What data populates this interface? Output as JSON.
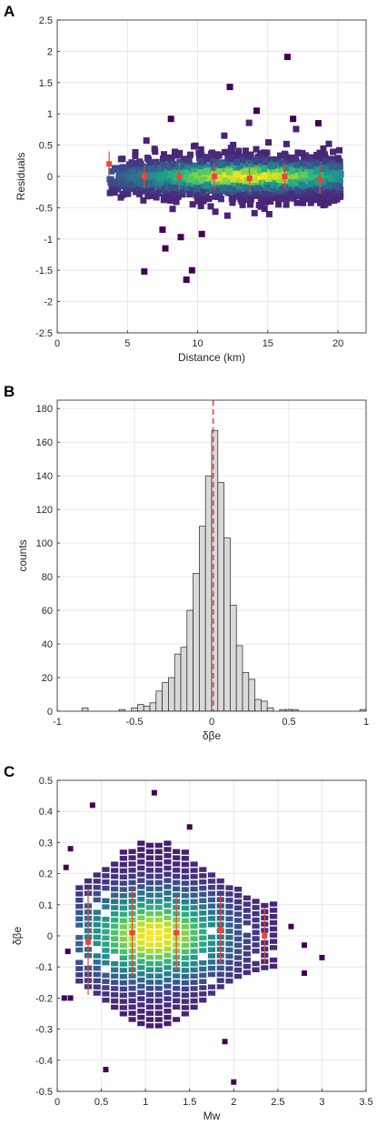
{
  "chart_data": [
    {
      "panel_label": "A",
      "type": "scatter",
      "subtype": "density-heatmap-with-binned-means",
      "xlabel": "Distance (km)",
      "ylabel": "Residuals",
      "xlim": [
        0,
        22
      ],
      "ylim": [
        -2.5,
        2.5
      ],
      "xticks": [
        "0",
        "5",
        "10",
        "15",
        "20"
      ],
      "yticks": [
        "-2.5",
        "-2",
        "-1.5",
        "-1",
        "-0.5",
        "0",
        "0.5",
        "1",
        "1.5",
        "2",
        "2.5"
      ],
      "grid": true,
      "density_cloud": {
        "x_range": [
          3.5,
          20.2
        ],
        "y_center": -0.02,
        "core_x": 13.5
      },
      "outliers": [
        {
          "x": 6.2,
          "y": -1.52
        },
        {
          "x": 7.5,
          "y": -0.85
        },
        {
          "x": 7.7,
          "y": -1.15
        },
        {
          "x": 8.8,
          "y": -0.97
        },
        {
          "x": 9.6,
          "y": -1.5
        },
        {
          "x": 9.2,
          "y": -1.65
        },
        {
          "x": 10.3,
          "y": -0.92
        },
        {
          "x": 8.1,
          "y": 0.92
        },
        {
          "x": 12.3,
          "y": 1.43
        },
        {
          "x": 16.4,
          "y": 1.91
        },
        {
          "x": 14.2,
          "y": 1.05
        },
        {
          "x": 18.6,
          "y": 0.85
        },
        {
          "x": 16.8,
          "y": 0.92
        }
      ],
      "binned_means": [
        {
          "x": 3.7,
          "y": 0.2,
          "err": 0.2
        },
        {
          "x": 6.2,
          "y": 0.0,
          "err": 0.18
        },
        {
          "x": 8.7,
          "y": 0.0,
          "err": 0.22
        },
        {
          "x": 11.2,
          "y": 0.0,
          "err": 0.22
        },
        {
          "x": 13.7,
          "y": -0.03,
          "err": 0.22
        },
        {
          "x": 16.2,
          "y": 0.0,
          "err": 0.2
        },
        {
          "x": 18.7,
          "y": -0.05,
          "err": 0.23
        }
      ],
      "colors": {
        "mean_marker": "#e8473f",
        "outlier": "#440154"
      }
    },
    {
      "panel_label": "B",
      "type": "bar",
      "subtype": "histogram",
      "xlabel": "δβe",
      "ylabel": "counts",
      "xlim": [
        -1,
        1
      ],
      "ylim": [
        0,
        185
      ],
      "xticks": [
        "-1",
        "-0.5",
        "0",
        "0.5",
        "1"
      ],
      "yticks": [
        "0",
        "20",
        "40",
        "60",
        "80",
        "100",
        "120",
        "140",
        "160",
        "180"
      ],
      "grid": true,
      "bin_width": 0.04,
      "bins": [
        {
          "x": -0.82,
          "count": 2
        },
        {
          "x": -0.58,
          "count": 1
        },
        {
          "x": -0.5,
          "count": 2
        },
        {
          "x": -0.46,
          "count": 4
        },
        {
          "x": -0.42,
          "count": 3
        },
        {
          "x": -0.38,
          "count": 5
        },
        {
          "x": -0.34,
          "count": 12
        },
        {
          "x": -0.3,
          "count": 17
        },
        {
          "x": -0.26,
          "count": 20
        },
        {
          "x": -0.22,
          "count": 34
        },
        {
          "x": -0.18,
          "count": 38
        },
        {
          "x": -0.14,
          "count": 60
        },
        {
          "x": -0.1,
          "count": 82
        },
        {
          "x": -0.06,
          "count": 110
        },
        {
          "x": -0.02,
          "count": 140
        },
        {
          "x": 0.02,
          "count": 167
        },
        {
          "x": 0.06,
          "count": 136
        },
        {
          "x": 0.1,
          "count": 103
        },
        {
          "x": 0.14,
          "count": 63
        },
        {
          "x": 0.18,
          "count": 39
        },
        {
          "x": 0.22,
          "count": 23
        },
        {
          "x": 0.26,
          "count": 19
        },
        {
          "x": 0.3,
          "count": 7
        },
        {
          "x": 0.34,
          "count": 6
        },
        {
          "x": 0.38,
          "count": 2
        },
        {
          "x": 0.46,
          "count": 1
        },
        {
          "x": 0.5,
          "count": 1
        },
        {
          "x": 0.54,
          "count": 1
        },
        {
          "x": 0.98,
          "count": 1
        }
      ],
      "mean_line_x": 0.01,
      "colors": {
        "bar_fill": "#d9d9d9",
        "bar_edge": "#222222",
        "mean_line": "#e8473f"
      }
    },
    {
      "panel_label": "C",
      "type": "scatter",
      "subtype": "density-heatmap-with-binned-means",
      "xlabel": "Mw",
      "ylabel": "δβe",
      "xlim": [
        0,
        3.5
      ],
      "ylim": [
        -0.5,
        0.5
      ],
      "xticks": [
        "0",
        "0.5",
        "1",
        "1.5",
        "2",
        "2.5",
        "3",
        "3.5"
      ],
      "yticks": [
        "-0.5",
        "-0.4",
        "-0.3",
        "-0.2",
        "-0.1",
        "0",
        "0.1",
        "0.2",
        "0.3",
        "0.4",
        "0.5"
      ],
      "grid": true,
      "density_cloud": {
        "x_range": [
          0.2,
          2.6
        ],
        "core_x": 1.1,
        "y_center": 0.01
      },
      "outliers": [
        {
          "x": 0.4,
          "y": 0.42
        },
        {
          "x": 1.1,
          "y": 0.46
        },
        {
          "x": 0.15,
          "y": 0.28
        },
        {
          "x": 0.1,
          "y": 0.22
        },
        {
          "x": 0.55,
          "y": -0.43
        },
        {
          "x": 2.0,
          "y": -0.47
        },
        {
          "x": 2.8,
          "y": -0.03
        },
        {
          "x": 3.0,
          "y": -0.07
        },
        {
          "x": 2.8,
          "y": -0.12
        },
        {
          "x": 2.65,
          "y": 0.03
        },
        {
          "x": 0.08,
          "y": -0.2
        },
        {
          "x": 0.15,
          "y": -0.2
        },
        {
          "x": 1.5,
          "y": 0.35
        },
        {
          "x": 1.9,
          "y": -0.34
        },
        {
          "x": 0.12,
          "y": -0.05
        }
      ],
      "binned_means": [
        {
          "x": 0.35,
          "y": -0.02,
          "err": 0.17
        },
        {
          "x": 0.85,
          "y": 0.01,
          "err": 0.14
        },
        {
          "x": 1.35,
          "y": 0.01,
          "err": 0.12
        },
        {
          "x": 1.85,
          "y": 0.02,
          "err": 0.11
        },
        {
          "x": 2.35,
          "y": 0.0,
          "err": 0.09
        }
      ],
      "colors": {
        "mean_marker": "#e8473f",
        "outlier": "#440154"
      }
    }
  ]
}
